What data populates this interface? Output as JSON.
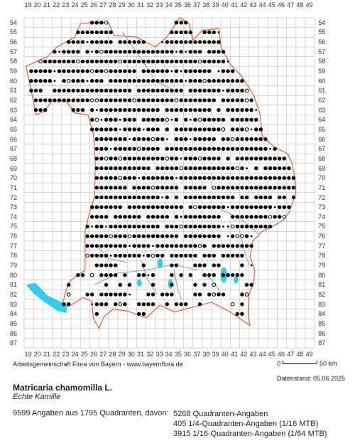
{
  "map": {
    "x_labels": [
      "19",
      "20",
      "21",
      "22",
      "23",
      "24",
      "25",
      "26",
      "27",
      "28",
      "29",
      "30",
      "31",
      "32",
      "33",
      "34",
      "35",
      "36",
      "37",
      "38",
      "39",
      "40",
      "41",
      "42",
      "43",
      "44",
      "45",
      "46",
      "47",
      "48",
      "49"
    ],
    "y_labels": [
      "54",
      "55",
      "56",
      "57",
      "58",
      "59",
      "60",
      "61",
      "62",
      "63",
      "64",
      "65",
      "66",
      "67",
      "68",
      "69",
      "70",
      "71",
      "72",
      "73",
      "74",
      "75",
      "76",
      "77",
      "78",
      "79",
      "80",
      "81",
      "82",
      "83",
      "84",
      "85",
      "86",
      "87"
    ],
    "colors": {
      "grid": "#bbbbbb",
      "border": "#e06040",
      "rivers": "#7aa0c8",
      "lakes": "#33ccee",
      "dots": "#000000"
    },
    "symbols": [
      "filled-circle",
      "open-circle",
      "small-dot"
    ]
  },
  "credit": "Arbeitsgemeinschaft Flora von Bayern - www.bayernflora.de",
  "scale": {
    "zero": "0",
    "distance": "50 km"
  },
  "datenstand": "Datenstand: 05.06.2025",
  "species": {
    "name": "Matricaria chamomilla L.",
    "common": "Echte Kamille"
  },
  "stats": {
    "summary": "9599 Angaben aus 1795 Quadranten, davon:",
    "quadrant": "5268 Quadranten-Angaben",
    "quarter": "405 1/4-Quadranten-Angaben (1/16 MTB)",
    "sixteenth": "3915 1/16-Quadranten-Angaben (1/64 MTB)"
  }
}
